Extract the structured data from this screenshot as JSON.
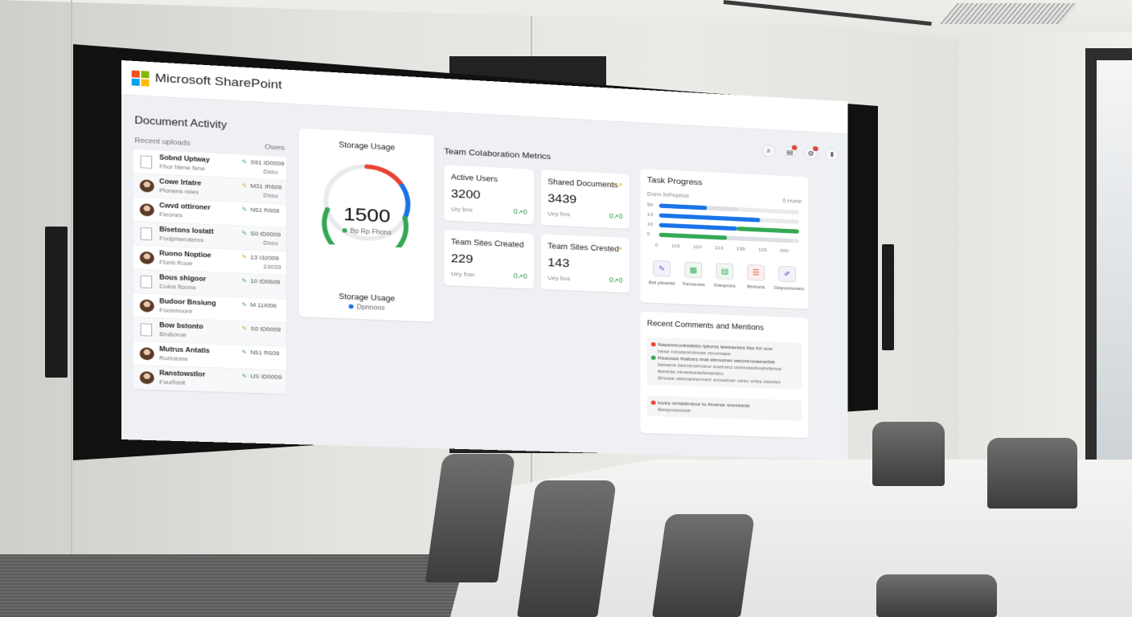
{
  "app": {
    "title": "Microsoft SharePoint"
  },
  "header_icons": [
    "search-icon",
    "file-icon",
    "settings-icon",
    "profile-icon"
  ],
  "document_activity": {
    "title": "Document Activity",
    "recent_label": "Recent uploads",
    "right_label": "Owes",
    "items": [
      {
        "icon": "document-icon",
        "name": "Sobnd Uptway",
        "sub": "Fhor hlene fene",
        "meta": "S91 ID0009",
        "meta2": "Dsso"
      },
      {
        "icon": "avatar",
        "name": "Cowe lrtatre",
        "sub": "Plonens reies",
        "meta": "M31 IR609",
        "meta2": "Dsso"
      },
      {
        "icon": "avatar",
        "name": "Cwvd ottironer",
        "sub": "Fieones",
        "meta": "N51 R609",
        "meta2": ""
      },
      {
        "icon": "document-icon",
        "name": "Bisetons lostatt",
        "sub": "Foopmeroteres",
        "meta": "S0 ID0009",
        "meta2": "Dsso"
      },
      {
        "icon": "avatar",
        "name": "Ruono Noptioe",
        "sub": "Flonti Rooe",
        "meta": "13 I32009",
        "meta2": "23039"
      },
      {
        "icon": "document-icon",
        "name": "Bous shigoor",
        "sub": "Cuins ftoone",
        "meta": "10 ID0609",
        "meta2": ""
      },
      {
        "icon": "avatar",
        "name": "Budoor Bnsiung",
        "sub": "Foosmoore",
        "meta": "M 11I006",
        "meta2": ""
      },
      {
        "icon": "document-icon",
        "name": "Bow bstonto",
        "sub": "Bruboroe",
        "meta": "S0 ID0009",
        "meta2": ""
      },
      {
        "icon": "avatar",
        "name": "Mutrus Antatis",
        "sub": "Rurtotone",
        "meta": "N51 R609",
        "meta2": ""
      },
      {
        "icon": "avatar",
        "name": "Ranstowstlor",
        "sub": "Fourfonit",
        "meta": "US ID0009",
        "meta2": ""
      }
    ]
  },
  "storage": {
    "title": "Storage Usage",
    "value": "1500",
    "legend": "Bp Rp Fhons",
    "bottom_title": "Storage Usage",
    "bottom_legend": "Dpnnoos",
    "colors": {
      "red": "#ea4335",
      "blue": "#1a73e8",
      "green": "#34a853",
      "track": "#e8eaed"
    }
  },
  "collaboration": {
    "title": "Team Colaboration Metrics",
    "cards": [
      {
        "label": "Active Users",
        "value": "3200",
        "foot": "Ury bns",
        "trend": "0↗0"
      },
      {
        "label": "Shared Documents",
        "value": "3439",
        "foot": "Uey fms",
        "trend": "0↗0",
        "top_trend": "↗↗"
      },
      {
        "label": "Team Sites Created",
        "value": "229",
        "foot": "Uey fran",
        "trend": "0↗0"
      },
      {
        "label": "Team Sites Crested",
        "value": "143",
        "foot": "Uey bos",
        "trend": "0↗0",
        "top_trend": "↗"
      }
    ]
  },
  "task_progress": {
    "title": "Task Progress",
    "subtitle": "Donn hrPeprios",
    "right_label": "0 Hone",
    "rows": [
      {
        "label": "50",
        "blue": 0.34,
        "gray": 0.56,
        "green": 0
      },
      {
        "label": "13",
        "blue": 0.72,
        "gray": 0.72,
        "green": 0
      },
      {
        "label": "10",
        "blue": 0.55,
        "gray": 0.55,
        "green": 0.45
      },
      {
        "label": "0",
        "blue": 0,
        "gray": 0.95,
        "green": 0.48
      }
    ],
    "axis": [
      "0",
      "115",
      "110",
      "113",
      "155",
      "115",
      "000"
    ],
    "actions": [
      {
        "icon": "document-edit-icon",
        "label": "Bsl pbunist",
        "color": "#6b4fbb"
      },
      {
        "icon": "chart-icon",
        "label": "Tonoeoes",
        "color": "#34a853"
      },
      {
        "icon": "clipboard-icon",
        "label": "Danpoes",
        "color": "#34a853"
      },
      {
        "icon": "form-icon",
        "label": "Bnrions",
        "color": "#ea4335"
      },
      {
        "icon": "folder-edit-icon",
        "label": "Depoononeo",
        "color": "#6b4fbb"
      }
    ]
  },
  "comments": {
    "title": "Recent Comments and Mentions",
    "block1": [
      {
        "dot": "#ea4335",
        "text": "Nassnreootnidebn tptorss leweavses liss for ooo"
      },
      {
        "dot": "",
        "text": "hese roroseorvinvse reroreaee"
      },
      {
        "dot": "#34a853",
        "text": "Reaoses thatoes mat stenorner wecne/oosewrbie"
      },
      {
        "dot": "",
        "text": "bwvene beersroeroeor eoeroeo onervaxolvoirefence"
      },
      {
        "dot": "",
        "text": "liwvese veneworavloraeseo"
      },
      {
        "dot": "",
        "text": "Brvose oieenerrerrnerr eroxetuer oeso orles ossnter"
      }
    ],
    "block2": [
      {
        "dot": "#ea4335",
        "text": "loves reriddeneoe to feverse snoveede"
      },
      {
        "dot": "",
        "text": "Beepoosoose"
      }
    ]
  }
}
